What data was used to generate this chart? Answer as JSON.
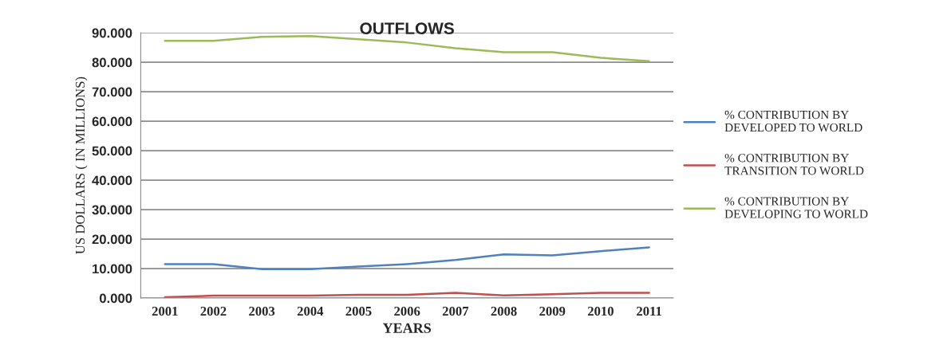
{
  "chart_data": {
    "type": "line",
    "title": "OUTFLOWS",
    "xlabel": "YEARS",
    "ylabel": "US DOLLARS ( IN MILLIONS)",
    "categories": [
      "2001",
      "2002",
      "2003",
      "2004",
      "2005",
      "2006",
      "2007",
      "2008",
      "2009",
      "2010",
      "2011"
    ],
    "series": [
      {
        "name": "% CONTRIBUTION BY DEVELOPED TO WORLD",
        "color": "#4f81bd",
        "values": [
          11.5,
          11.5,
          9.8,
          9.8,
          10.7,
          11.5,
          12.9,
          14.8,
          14.5,
          15.9,
          17.2
        ]
      },
      {
        "name": "% CONTRIBUTION BY TRANSITION TO WORLD",
        "color": "#c0504d",
        "values": [
          0.3,
          0.8,
          0.8,
          0.8,
          1.1,
          1.1,
          1.8,
          0.9,
          1.3,
          1.8,
          1.8
        ]
      },
      {
        "name": "% CONTRIBUTION BY DEVELOPING TO WORLD",
        "color": "#9bbb59",
        "values": [
          87.3,
          87.3,
          88.6,
          88.9,
          87.8,
          86.7,
          84.8,
          83.4,
          83.4,
          81.5,
          80.4
        ]
      }
    ],
    "ylim": [
      0,
      90
    ],
    "yticks": [
      {
        "value": 0,
        "label": "0.000"
      },
      {
        "value": 10,
        "label": "10.000"
      },
      {
        "value": 20,
        "label": "20.000"
      },
      {
        "value": 30,
        "label": "30.000"
      },
      {
        "value": 40,
        "label": "40.000"
      },
      {
        "value": 50,
        "label": "50.000"
      },
      {
        "value": 60,
        "label": "60.000"
      },
      {
        "value": 70,
        "label": "70.000"
      },
      {
        "value": 80,
        "label": "80.000"
      },
      {
        "value": 90,
        "label": "90.000"
      }
    ],
    "grid": "y",
    "legend": "right",
    "marker": "none",
    "line_style": "solid"
  }
}
